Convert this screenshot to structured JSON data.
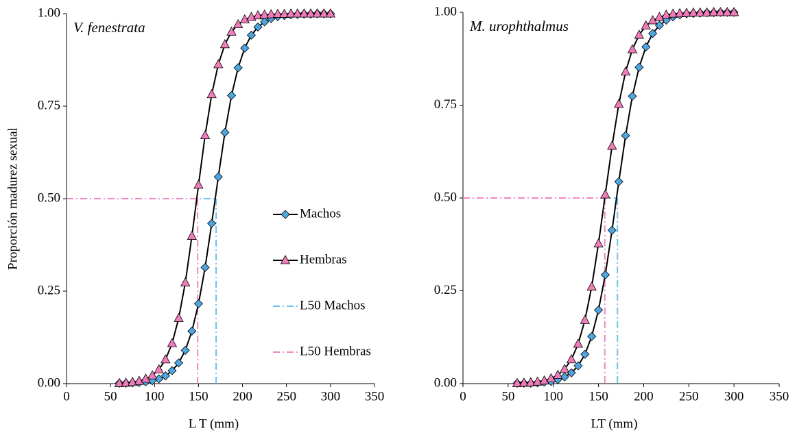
{
  "chart_data": [
    {
      "type": "line",
      "title": "V. fenestrata",
      "x_label": "L T (mm)",
      "y_label": "Proporción madurez sexual",
      "x": [
        60,
        67.5,
        75,
        82.5,
        90,
        97.5,
        105,
        112.5,
        120,
        127.5,
        135,
        142.5,
        150,
        157.5,
        165,
        172.5,
        180,
        187.5,
        195,
        202.5,
        210,
        217.5,
        225,
        232.5,
        240,
        247.5,
        255,
        262.5,
        270,
        277.5,
        285,
        292.5,
        300
      ],
      "series": [
        {
          "name": "Machos",
          "color": "#4ea6e0",
          "marker": "diamond",
          "values": [
            0.001,
            0.001,
            0.002,
            0.003,
            0.005,
            0.008,
            0.013,
            0.021,
            0.035,
            0.056,
            0.09,
            0.142,
            0.216,
            0.314,
            0.433,
            0.559,
            0.679,
            0.779,
            0.854,
            0.907,
            0.942,
            0.964,
            0.978,
            0.987,
            0.992,
            0.995,
            0.997,
            0.998,
            0.999,
            0.999,
            1,
            1,
            1
          ]
        },
        {
          "name": "Hembras",
          "color": "#f07cb9",
          "marker": "triangle",
          "values": [
            0.001,
            0.002,
            0.004,
            0.007,
            0.013,
            0.022,
            0.038,
            0.065,
            0.109,
            0.177,
            0.273,
            0.399,
            0.537,
            0.671,
            0.782,
            0.863,
            0.917,
            0.951,
            0.971,
            0.984,
            0.991,
            0.995,
            0.997,
            0.998,
            0.999,
            0.999,
            1,
            1,
            1,
            1,
            1,
            1,
            1
          ]
        }
      ],
      "reference_lines": [
        {
          "name": "L50 Machos",
          "color": "#6cc0ee",
          "x": 170,
          "y": 0.5
        },
        {
          "name": "L50 Hembras",
          "color": "#ee88c0",
          "x": 149,
          "y": 0.5
        }
      ],
      "xlim": [
        0,
        350
      ],
      "xticks": [
        0,
        50,
        100,
        150,
        200,
        250,
        300,
        350
      ],
      "ylim": [
        0,
        1
      ],
      "yticks": [
        {
          "value": 0,
          "label": "0.00"
        },
        {
          "value": 0.25,
          "label": "0.25"
        },
        {
          "value": 0.5,
          "label": "0.50"
        },
        {
          "value": 0.75,
          "label": "0.75"
        },
        {
          "value": 1,
          "label": "1.00"
        }
      ],
      "legend": "center"
    },
    {
      "type": "line",
      "title": "M. urophthalmus",
      "x_label": "LT (mm)",
      "x": [
        60,
        67.5,
        75,
        82.5,
        90,
        97.5,
        105,
        112.5,
        120,
        127.5,
        135,
        142.5,
        150,
        157.5,
        165,
        172.5,
        180,
        187.5,
        195,
        202.5,
        210,
        217.5,
        225,
        232.5,
        240,
        247.5,
        255,
        262.5,
        270,
        277.5,
        285,
        292.5,
        300
      ],
      "series": [
        {
          "color": "#4ea6e0",
          "marker": "diamond",
          "values": [
            0.001,
            0.001,
            0.001,
            0.002,
            0.004,
            0.006,
            0.011,
            0.018,
            0.029,
            0.048,
            0.079,
            0.127,
            0.198,
            0.293,
            0.413,
            0.544,
            0.668,
            0.774,
            0.852,
            0.907,
            0.943,
            0.965,
            0.979,
            0.988,
            0.993,
            0.996,
            0.997,
            0.998,
            0.999,
            0.999,
            1,
            1,
            1
          ]
        },
        {
          "color": "#f07cb9",
          "marker": "triangle",
          "values": [
            0.001,
            0.002,
            0.003,
            0.005,
            0.008,
            0.014,
            0.023,
            0.039,
            0.065,
            0.107,
            0.171,
            0.261,
            0.377,
            0.509,
            0.64,
            0.753,
            0.84,
            0.9,
            0.939,
            0.964,
            0.978,
            0.987,
            0.993,
            0.996,
            0.997,
            0.998,
            0.999,
            0.999,
            0.999,
            1,
            1,
            1,
            1
          ]
        }
      ],
      "reference_lines": [
        {
          "color": "#6cc0ee",
          "x": 171,
          "y": 0.5
        },
        {
          "color": "#ee88c0",
          "x": 157,
          "y": 0.5
        }
      ],
      "xlim": [
        0,
        350
      ],
      "xticks": [
        0,
        50,
        100,
        150,
        200,
        250,
        300,
        350
      ],
      "ylim": [
        0,
        1
      ],
      "yticks": [
        {
          "value": 0,
          "label": "0.00"
        },
        {
          "value": 0.25,
          "label": "0.25"
        },
        {
          "value": 0.5,
          "label": "0.50"
        },
        {
          "value": 0.75,
          "label": "0.75"
        },
        {
          "value": 1,
          "label": "1.00"
        }
      ]
    }
  ]
}
